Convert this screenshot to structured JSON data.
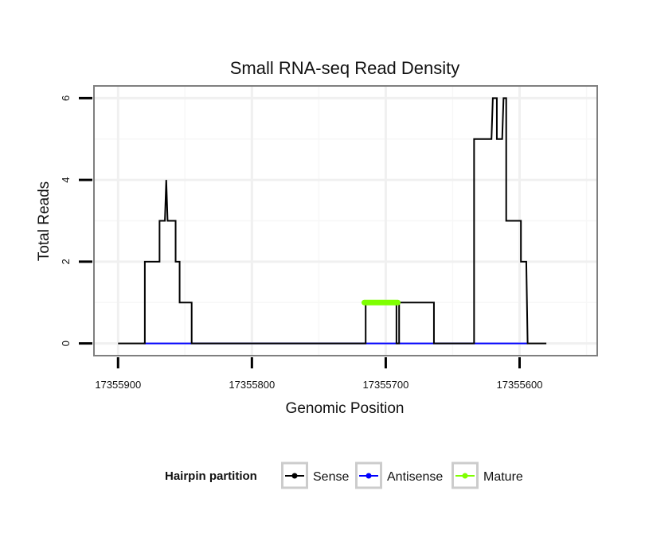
{
  "chart_data": {
    "type": "line",
    "title": "Small RNA-seq Read Density",
    "xlabel": "Genomic Position",
    "ylabel": "Total Reads",
    "x_reversed": true,
    "xlim": [
      17355918,
      17355542
    ],
    "ylim": [
      -0.3,
      6.3
    ],
    "x_ticks": [
      17355900,
      17355800,
      17355700,
      17355600
    ],
    "x_tick_labels": [
      "17355900",
      "17355800",
      "17355700",
      "17355600"
    ],
    "y_ticks": [
      0,
      2,
      4,
      6
    ],
    "y_tick_labels": [
      "0",
      "2",
      "4",
      "6"
    ],
    "grid": true,
    "legend": {
      "title": "Hairpin partition",
      "position": "bottom",
      "entries": [
        {
          "label": "Sense",
          "color": "#000000"
        },
        {
          "label": "Antisense",
          "color": "#0000ff"
        },
        {
          "label": "Mature",
          "color": "#7fff00"
        }
      ]
    },
    "series": [
      {
        "name": "Sense",
        "color": "#000000",
        "points": [
          [
            17355900,
            0
          ],
          [
            17355880,
            0
          ],
          [
            17355880,
            2
          ],
          [
            17355869,
            2
          ],
          [
            17355869,
            3
          ],
          [
            17355865,
            3
          ],
          [
            17355864,
            4
          ],
          [
            17355863,
            3
          ],
          [
            17355857,
            3
          ],
          [
            17355857,
            2
          ],
          [
            17355854,
            2
          ],
          [
            17355854,
            1
          ],
          [
            17355845,
            1
          ],
          [
            17355845,
            0
          ],
          [
            17355715,
            0
          ],
          [
            17355715,
            1
          ],
          [
            17355692,
            1
          ],
          [
            17355692,
            0
          ],
          [
            17355690,
            0
          ],
          [
            17355690,
            1
          ],
          [
            17355664,
            1
          ],
          [
            17355664,
            0
          ],
          [
            17355634,
            0
          ],
          [
            17355634,
            5
          ],
          [
            17355621,
            5
          ],
          [
            17355620,
            6
          ],
          [
            17355617,
            6
          ],
          [
            17355617,
            5
          ],
          [
            17355613,
            5
          ],
          [
            17355612,
            6
          ],
          [
            17355610,
            6
          ],
          [
            17355610,
            3
          ],
          [
            17355599,
            3
          ],
          [
            17355599,
            2
          ],
          [
            17355595,
            2
          ],
          [
            17355594,
            0
          ],
          [
            17355580,
            0
          ]
        ]
      },
      {
        "name": "Antisense",
        "color": "#0000ff",
        "points": [
          [
            17355881,
            0
          ],
          [
            17355594,
            0
          ]
        ]
      },
      {
        "name": "Mature",
        "color": "#7fff00",
        "points": [
          [
            17355716,
            1
          ],
          [
            17355691,
            1
          ]
        ]
      }
    ]
  }
}
